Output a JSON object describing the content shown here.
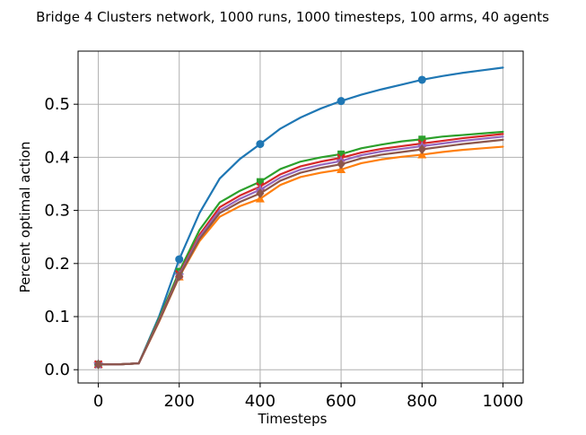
{
  "chart_data": {
    "type": "line",
    "title": "Bridge 4 Clusters network, 1000 runs, 1000 timesteps, 100 arms, 40 agents",
    "xlabel": "Timesteps",
    "ylabel": "Percent optimal action",
    "xlim": [
      -50,
      1050
    ],
    "ylim": [
      -0.025,
      0.6
    ],
    "xticks": [
      0,
      200,
      400,
      600,
      800,
      1000
    ],
    "xtick_labels": [
      "0",
      "200",
      "400",
      "600",
      "800",
      "1000"
    ],
    "yticks": [
      0.0,
      0.1,
      0.2,
      0.3,
      0.4,
      0.5
    ],
    "ytick_labels": [
      "0.0",
      "0.1",
      "0.2",
      "0.3",
      "0.4",
      "0.5"
    ],
    "grid": true,
    "legend": "none",
    "x": [
      0,
      50,
      100,
      150,
      200,
      250,
      300,
      350,
      400,
      450,
      500,
      550,
      600,
      650,
      700,
      750,
      800,
      850,
      900,
      950,
      1000
    ],
    "marker_x": [
      0,
      200,
      400,
      600,
      800
    ],
    "series": [
      {
        "color": "#1f77b4",
        "marker": "circle",
        "values": [
          0.01,
          0.01,
          0.012,
          0.1,
          0.208,
          0.295,
          0.36,
          0.397,
          0.425,
          0.454,
          0.475,
          0.492,
          0.506,
          0.518,
          0.528,
          0.537,
          0.546,
          0.553,
          0.559,
          0.564,
          0.569
        ]
      },
      {
        "color": "#ff7f0e",
        "marker": "triangle",
        "values": [
          0.01,
          0.01,
          0.012,
          0.09,
          0.175,
          0.242,
          0.288,
          0.308,
          0.322,
          0.348,
          0.363,
          0.371,
          0.377,
          0.389,
          0.396,
          0.401,
          0.405,
          0.41,
          0.414,
          0.417,
          0.42
        ]
      },
      {
        "color": "#2ca02c",
        "marker": "square",
        "values": [
          0.01,
          0.01,
          0.012,
          0.096,
          0.185,
          0.263,
          0.315,
          0.337,
          0.354,
          0.378,
          0.392,
          0.4,
          0.406,
          0.417,
          0.424,
          0.43,
          0.434,
          0.439,
          0.442,
          0.445,
          0.448
        ]
      },
      {
        "color": "#d62728",
        "marker": "x",
        "values": [
          0.01,
          0.01,
          0.012,
          0.093,
          0.18,
          0.254,
          0.306,
          0.328,
          0.345,
          0.368,
          0.383,
          0.392,
          0.399,
          0.409,
          0.416,
          0.421,
          0.426,
          0.431,
          0.436,
          0.44,
          0.444
        ]
      },
      {
        "color": "#9467bd",
        "marker": "star",
        "values": [
          0.01,
          0.01,
          0.012,
          0.092,
          0.178,
          0.25,
          0.3,
          0.322,
          0.339,
          0.362,
          0.377,
          0.386,
          0.393,
          0.404,
          0.411,
          0.416,
          0.421,
          0.426,
          0.431,
          0.435,
          0.439
        ]
      },
      {
        "color": "#8c564b",
        "marker": "diamond",
        "values": [
          0.01,
          0.01,
          0.012,
          0.091,
          0.176,
          0.246,
          0.295,
          0.316,
          0.332,
          0.356,
          0.371,
          0.38,
          0.387,
          0.398,
          0.405,
          0.41,
          0.415,
          0.42,
          0.425,
          0.429,
          0.433
        ]
      }
    ]
  }
}
